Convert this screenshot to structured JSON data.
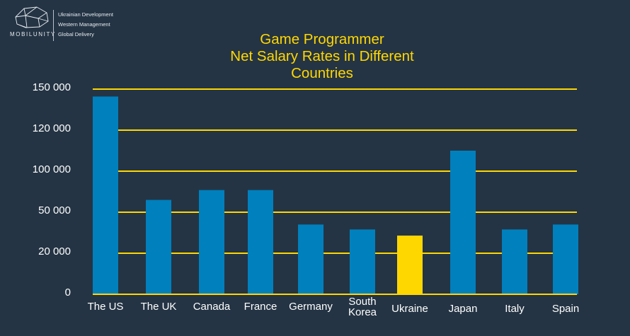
{
  "brand": {
    "name": "MOBILUNITY",
    "taglines": [
      "Ukrainian Development",
      "Western Management",
      "Global Delivery"
    ]
  },
  "colors": {
    "background": "#243444",
    "bar": "#0080bd",
    "bar_highlight": "#ffd700",
    "grid": "#ffd700",
    "title": "#ffd700",
    "text": "#ffffff"
  },
  "chart_data": {
    "type": "bar",
    "title": [
      "Game Programmer",
      "Net Salary Rates in Different",
      "Countries"
    ],
    "xlabel": "",
    "ylabel": "",
    "categories": [
      "The US",
      "The UK",
      "Canada",
      "France",
      "Germany",
      "South Korea",
      "Ukraine",
      "Japan",
      "Italy",
      "Spain"
    ],
    "category_lines": [
      [
        "The US"
      ],
      [
        "The UK"
      ],
      [
        "Canada"
      ],
      [
        "France"
      ],
      [
        "Germany"
      ],
      [
        "South",
        "Korea"
      ],
      [
        "Ukraine"
      ],
      [
        "Japan"
      ],
      [
        "Italy"
      ],
      [
        "Spain"
      ]
    ],
    "y_tick_labels": [
      "0",
      "20 000",
      "50 000",
      "100 000",
      "120 000",
      "150 000"
    ],
    "y_tick_level_index": [
      0,
      1,
      2,
      3,
      4,
      5
    ],
    "bar_levels": [
      4.82,
      2.3,
      2.54,
      2.54,
      1.7,
      1.58,
      1.43,
      3.5,
      1.58,
      1.7
    ],
    "highlighted_category": "Ukraine",
    "grid": true,
    "legend": "none"
  }
}
